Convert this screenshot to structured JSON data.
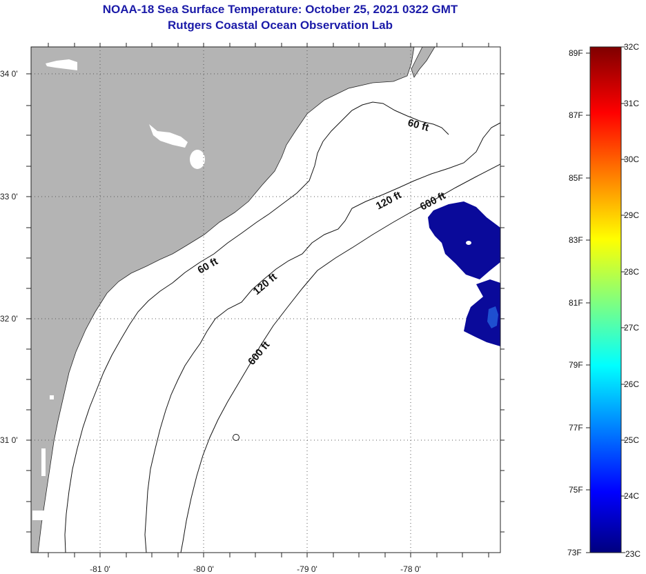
{
  "title": {
    "line1": "NOAA-18 Sea Surface Temperature:  October 25, 2021 0322 GMT",
    "line2": "Rutgers Coastal Ocean Observation Lab"
  },
  "map": {
    "lat_labels": [
      "34 0'",
      "33 0'",
      "32 0'",
      "31 0'"
    ],
    "lon_labels": [
      "-81 0'",
      "-80 0'",
      "-79 0'",
      "-78 0'"
    ],
    "contours": [
      "60 ft",
      "60 ft",
      "120 ft",
      "120 ft",
      "600 ft",
      "600 ft"
    ],
    "colors": {
      "land": "#b4b4b4",
      "sst_cold": "#0a0a9a",
      "sst_warm": "#1e4fd0"
    }
  },
  "colorbar": {
    "fahrenheit": [
      "89F",
      "87F",
      "85F",
      "83F",
      "81F",
      "79F",
      "77F",
      "75F",
      "73F"
    ],
    "celsius": [
      "32C",
      "31C",
      "30C",
      "29C",
      "28C",
      "27C",
      "26C",
      "25C",
      "24C",
      "23C"
    ],
    "range_c": [
      23,
      32
    ],
    "colormap": [
      "#00007f",
      "#0000ff",
      "#00ffff",
      "#ffff00",
      "#ff0000",
      "#7f0000"
    ]
  }
}
